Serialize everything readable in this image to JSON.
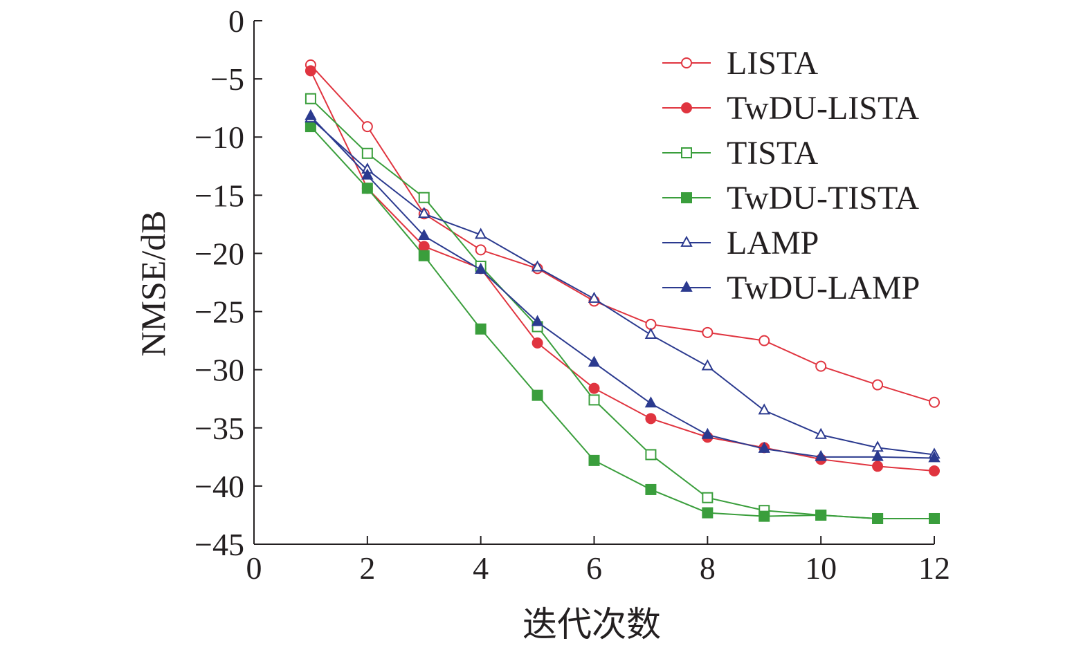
{
  "chart_data": {
    "type": "line",
    "title": "",
    "xlabel": "迭代次数",
    "ylabel": "NMSE/dB",
    "xlim": [
      0,
      12
    ],
    "ylim": [
      -45,
      0
    ],
    "xticks": [
      0,
      2,
      4,
      6,
      8,
      10,
      12
    ],
    "yticks": [
      0,
      -5,
      -10,
      -15,
      -20,
      -25,
      -30,
      -35,
      -40,
      -45
    ],
    "ytick_labels": [
      "0",
      "−5",
      "−10",
      "−15",
      "−20",
      "−25",
      "−30",
      "−35",
      "−40",
      "−45"
    ],
    "grid": false,
    "legend_position": "top-right",
    "x": [
      1,
      2,
      3,
      4,
      5,
      6,
      7,
      8,
      9,
      10,
      11,
      12
    ],
    "series": [
      {
        "name": "LISTA",
        "color": "#e0343f",
        "marker": "circle",
        "filled": false,
        "values": [
          -3.8,
          -9.1,
          -16.6,
          -19.7,
          -21.3,
          -24.1,
          -26.1,
          -26.8,
          -27.5,
          -29.7,
          -31.3,
          -32.8
        ]
      },
      {
        "name": "TwDU-LISTA",
        "color": "#e0343f",
        "marker": "circle",
        "filled": true,
        "values": [
          -4.3,
          -14.4,
          -19.4,
          -21.3,
          -27.7,
          -31.6,
          -34.2,
          -35.8,
          -36.7,
          -37.7,
          -38.3,
          -38.7
        ]
      },
      {
        "name": "TISTA",
        "color": "#3a9e3c",
        "marker": "square",
        "filled": false,
        "values": [
          -6.7,
          -11.4,
          -15.2,
          -21.1,
          -26.3,
          -32.6,
          -37.3,
          -41.0,
          -42.1,
          -42.5,
          -42.8,
          -42.8
        ]
      },
      {
        "name": "TwDU-TISTA",
        "color": "#3a9e3c",
        "marker": "square",
        "filled": true,
        "values": [
          -9.1,
          -14.4,
          -20.2,
          -26.5,
          -32.2,
          -37.8,
          -40.3,
          -42.3,
          -42.6,
          -42.5,
          -42.8,
          -42.8
        ]
      },
      {
        "name": "LAMP",
        "color": "#2b3a8f",
        "marker": "triangle",
        "filled": false,
        "values": [
          -8.4,
          -12.8,
          -16.6,
          -18.4,
          -21.2,
          -23.9,
          -27.0,
          -29.7,
          -33.5,
          -35.6,
          -36.7,
          -37.3
        ]
      },
      {
        "name": "TwDU-LAMP",
        "color": "#2b3a8f",
        "marker": "triangle",
        "filled": true,
        "values": [
          -8.2,
          -13.3,
          -18.5,
          -21.4,
          -25.9,
          -29.4,
          -32.9,
          -35.6,
          -36.8,
          -37.5,
          -37.5,
          -37.6
        ]
      }
    ]
  }
}
